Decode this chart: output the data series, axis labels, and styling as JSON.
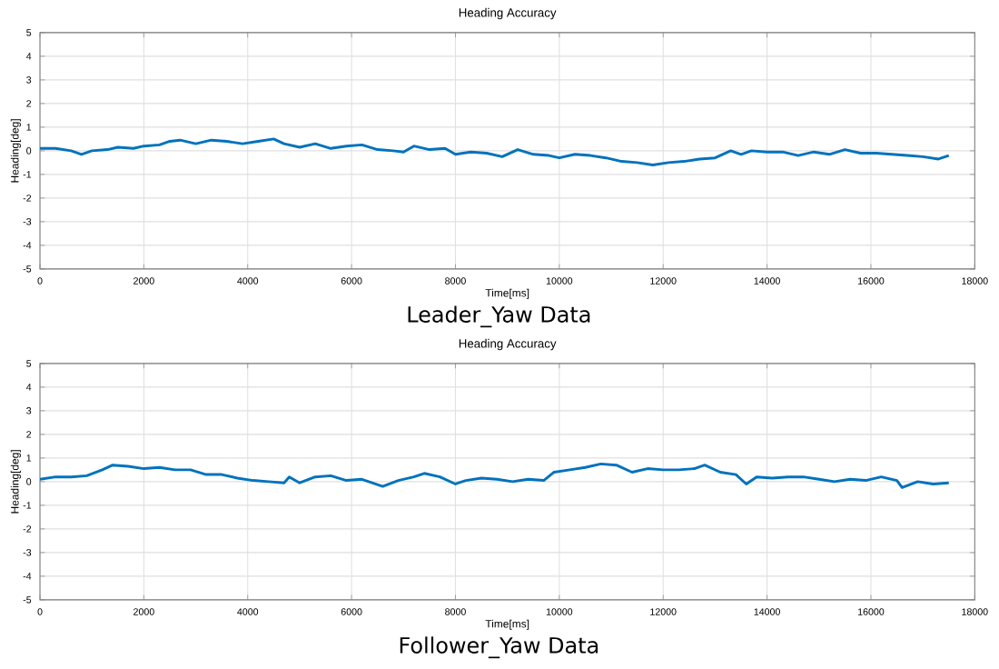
{
  "chart_data": [
    {
      "type": "line",
      "title": "Heading Accuracy",
      "xlabel": "Time[ms]",
      "ylabel": "Heading[deg]",
      "annotations": [
        "Leader_Yaw Data"
      ],
      "grid": true,
      "xlim": [
        0,
        18000
      ],
      "ylim": [
        -5,
        5
      ],
      "xticks": [
        0,
        2000,
        4000,
        6000,
        8000,
        10000,
        12000,
        14000,
        16000,
        18000
      ],
      "yticks": [
        -5,
        -4,
        -3,
        -2,
        -1,
        0,
        1,
        2,
        3,
        4,
        5
      ],
      "series": [
        {
          "color": "#0072bd",
          "x": [
            0,
            300,
            600,
            800,
            1000,
            1300,
            1500,
            1800,
            2000,
            2300,
            2500,
            2700,
            3000,
            3300,
            3600,
            3900,
            4200,
            4500,
            4700,
            5000,
            5300,
            5600,
            5900,
            6200,
            6500,
            6800,
            7000,
            7200,
            7500,
            7800,
            8000,
            8300,
            8600,
            8900,
            9200,
            9500,
            9800,
            10000,
            10300,
            10600,
            10900,
            11200,
            11500,
            11800,
            12100,
            12400,
            12700,
            13000,
            13300,
            13500,
            13700,
            14000,
            14300,
            14600,
            14900,
            15200,
            15500,
            15800,
            16100,
            16400,
            16700,
            17000,
            17300,
            17500
          ],
          "values": [
            0.1,
            0.1,
            0.0,
            -0.15,
            0.0,
            0.05,
            0.15,
            0.1,
            0.2,
            0.25,
            0.4,
            0.45,
            0.3,
            0.45,
            0.4,
            0.3,
            0.4,
            0.5,
            0.3,
            0.15,
            0.3,
            0.1,
            0.2,
            0.25,
            0.05,
            0.0,
            -0.05,
            0.2,
            0.05,
            0.1,
            -0.15,
            -0.05,
            -0.1,
            -0.25,
            0.05,
            -0.15,
            -0.2,
            -0.3,
            -0.15,
            -0.2,
            -0.3,
            -0.45,
            -0.5,
            -0.6,
            -0.5,
            -0.45,
            -0.35,
            -0.3,
            0.0,
            -0.15,
            0.0,
            -0.05,
            -0.05,
            -0.2,
            -0.05,
            -0.15,
            0.05,
            -0.1,
            -0.1,
            -0.15,
            -0.2,
            -0.25,
            -0.35,
            -0.2
          ]
        }
      ]
    },
    {
      "type": "line",
      "title": "Heading Accuracy",
      "xlabel": "Time[ms]",
      "ylabel": "Heading[deg]",
      "annotations": [
        "Follower_Yaw Data"
      ],
      "grid": true,
      "xlim": [
        0,
        18000
      ],
      "ylim": [
        -5,
        5
      ],
      "xticks": [
        0,
        2000,
        4000,
        6000,
        8000,
        10000,
        12000,
        14000,
        16000,
        18000
      ],
      "yticks": [
        -5,
        -4,
        -3,
        -2,
        -1,
        0,
        1,
        2,
        3,
        4,
        5
      ],
      "series": [
        {
          "color": "#0072bd",
          "x": [
            0,
            300,
            600,
            900,
            1200,
            1400,
            1700,
            2000,
            2300,
            2600,
            2900,
            3200,
            3500,
            3800,
            4100,
            4400,
            4700,
            4800,
            5000,
            5300,
            5600,
            5900,
            6200,
            6600,
            6900,
            7200,
            7400,
            7700,
            8000,
            8200,
            8500,
            8800,
            9100,
            9400,
            9700,
            9900,
            10200,
            10500,
            10800,
            11100,
            11400,
            11700,
            12000,
            12300,
            12600,
            12800,
            13100,
            13400,
            13600,
            13800,
            14100,
            14400,
            14700,
            15000,
            15300,
            15600,
            15900,
            16200,
            16500,
            16600,
            16900,
            17200,
            17500
          ],
          "values": [
            0.1,
            0.2,
            0.2,
            0.25,
            0.5,
            0.7,
            0.65,
            0.55,
            0.6,
            0.5,
            0.5,
            0.3,
            0.3,
            0.15,
            0.05,
            0.0,
            -0.05,
            0.2,
            -0.05,
            0.2,
            0.25,
            0.05,
            0.1,
            -0.2,
            0.05,
            0.2,
            0.35,
            0.2,
            -0.1,
            0.05,
            0.15,
            0.1,
            0.0,
            0.1,
            0.05,
            0.4,
            0.5,
            0.6,
            0.75,
            0.7,
            0.4,
            0.55,
            0.5,
            0.5,
            0.55,
            0.7,
            0.4,
            0.3,
            -0.1,
            0.2,
            0.15,
            0.2,
            0.2,
            0.1,
            0.0,
            0.1,
            0.05,
            0.2,
            0.05,
            -0.25,
            0.0,
            -0.1,
            -0.05
          ]
        }
      ]
    }
  ]
}
